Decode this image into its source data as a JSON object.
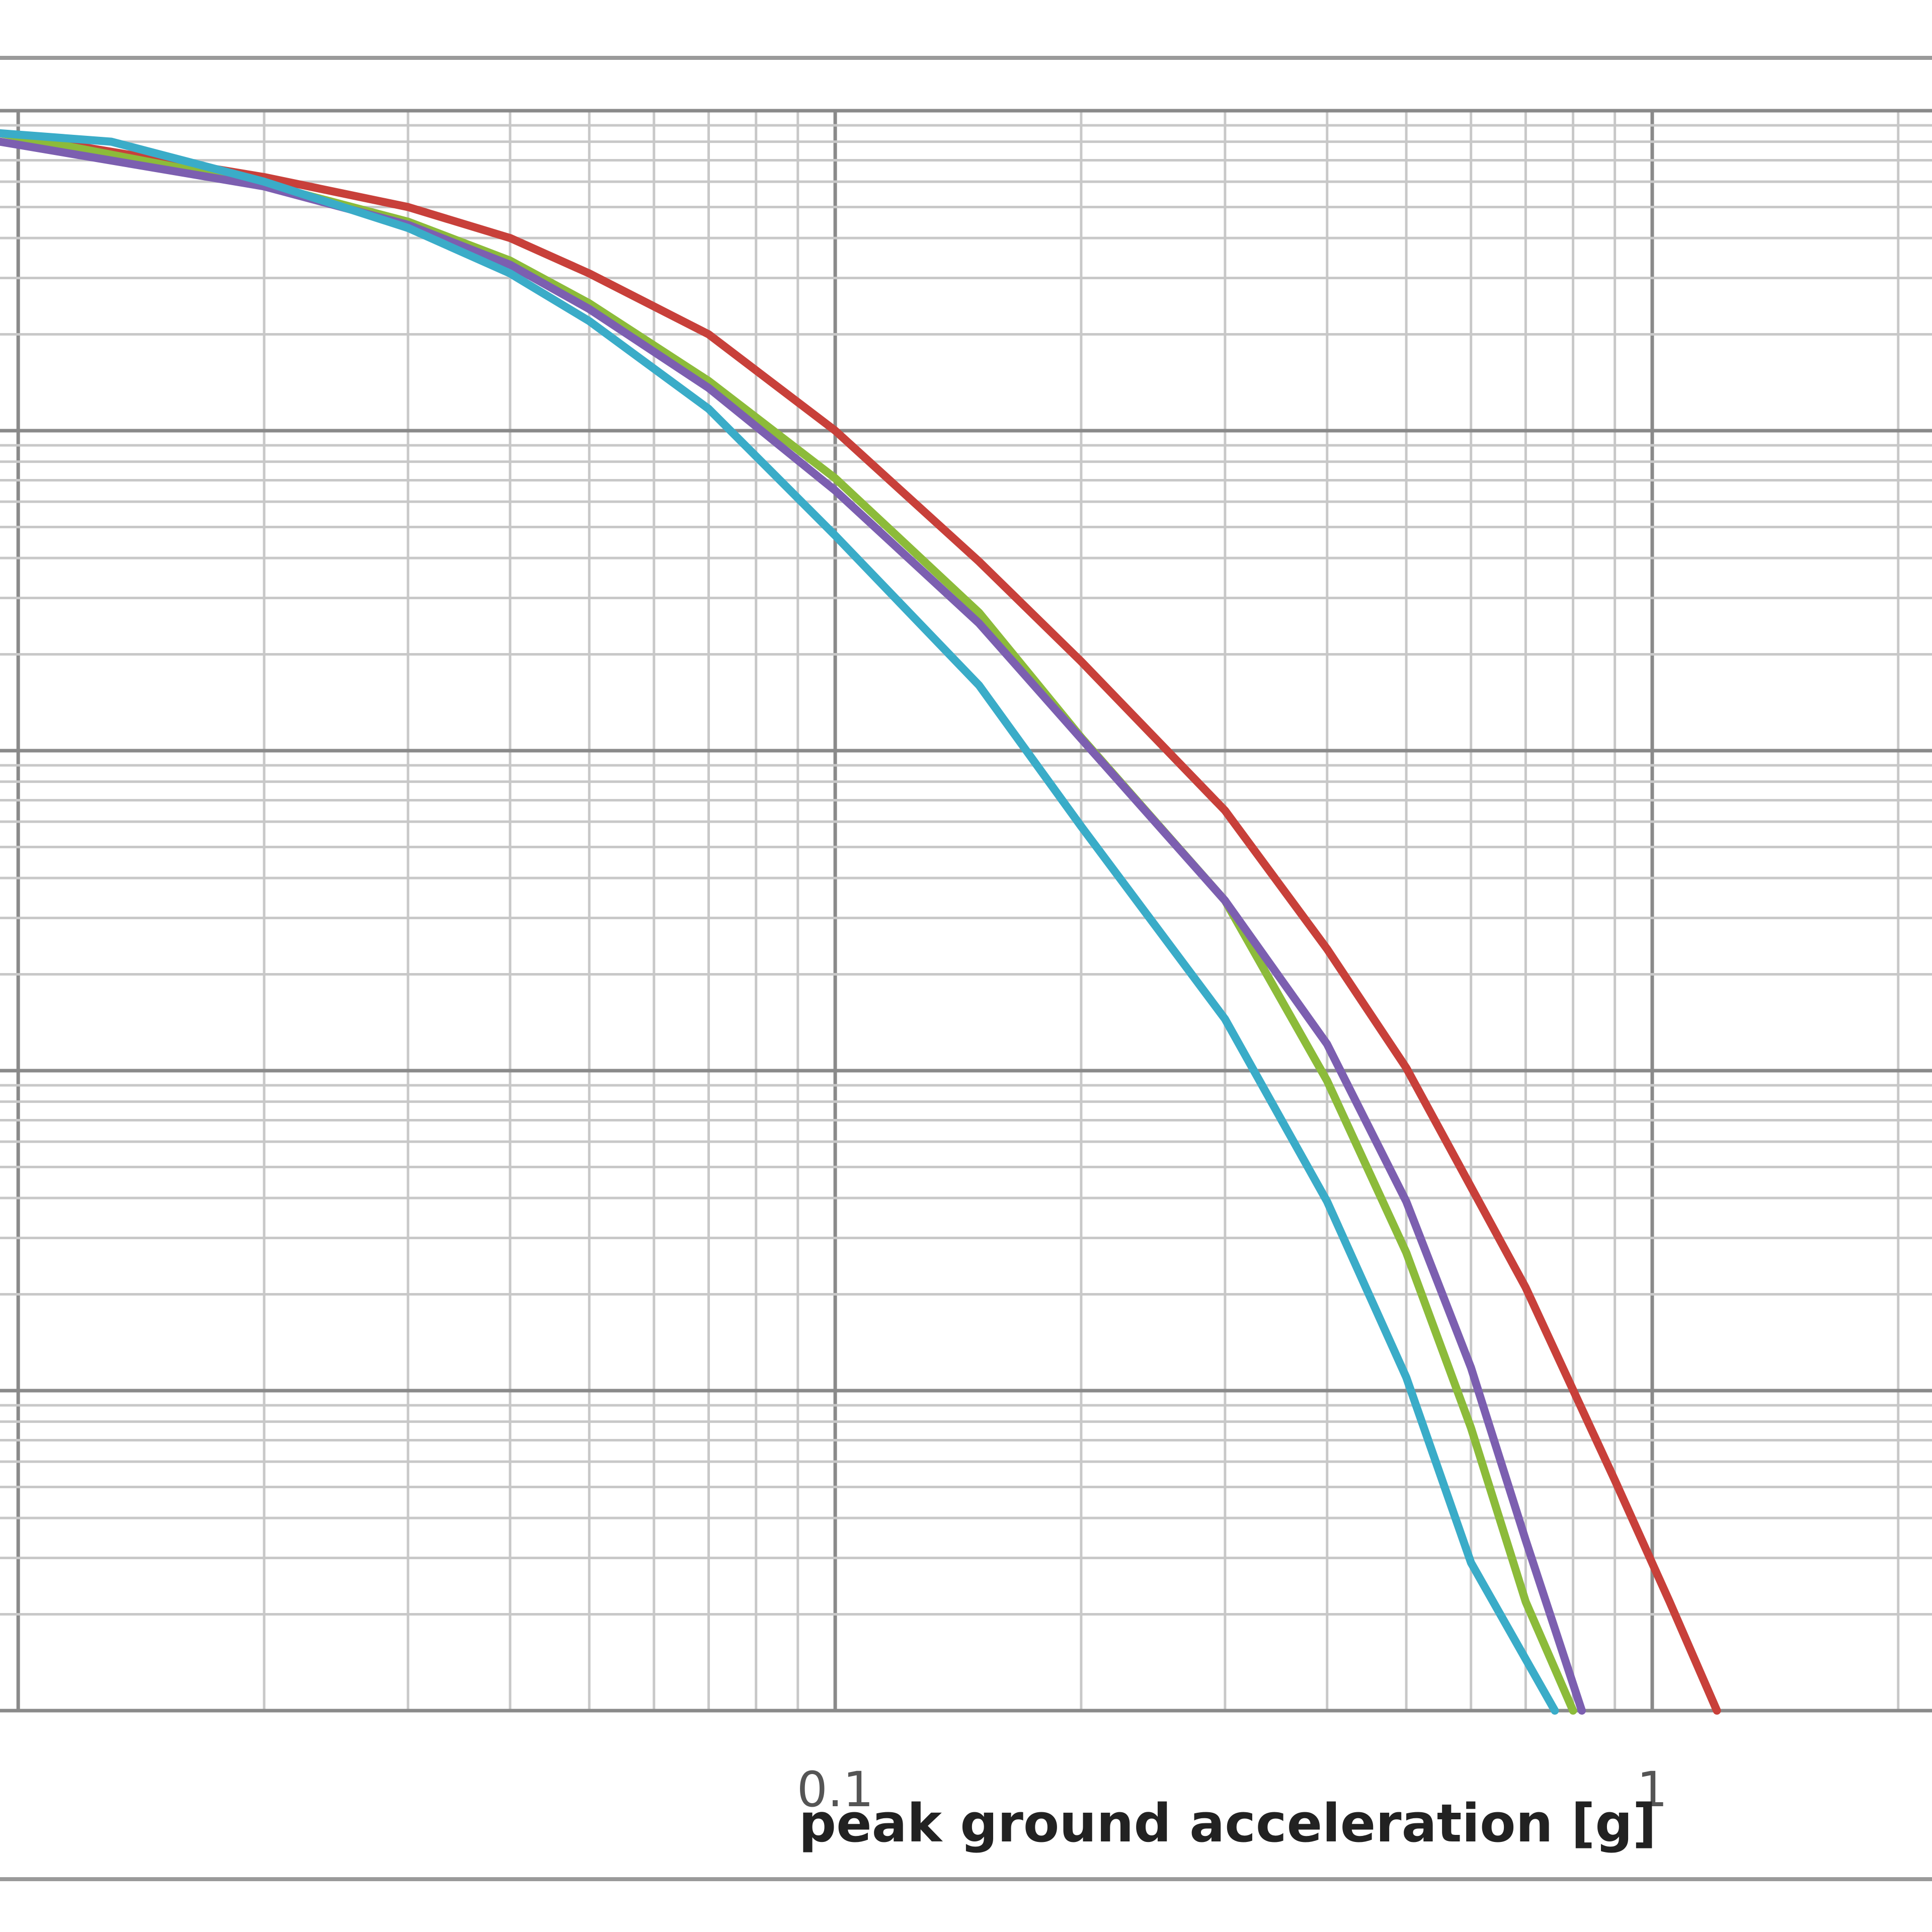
{
  "chart_data": {
    "type": "line",
    "title": "",
    "xlabel": "peak ground acceleration [g]",
    "ylabel": "",
    "x_scale": "log",
    "y_scale": "log",
    "xlim": [
      0.0095,
      2.2
    ],
    "ylim": [
      1e-05,
      1
    ],
    "x_tick_labels": [
      {
        "value": 0.1,
        "label": "0.1"
      },
      {
        "value": 1,
        "label": "1"
      }
    ],
    "grid": true,
    "legend": "none",
    "colors": {
      "grid_major": "#8a8a8a",
      "grid_minor": "#c8c8c8",
      "frame": "#9a9a9a"
    },
    "series": [
      {
        "color": "#c8403a",
        "points": [
          [
            0.0095,
            0.85
          ],
          [
            0.02,
            0.62
          ],
          [
            0.03,
            0.5
          ],
          [
            0.04,
            0.4
          ],
          [
            0.05,
            0.31
          ],
          [
            0.07,
            0.2
          ],
          [
            0.1,
            0.1
          ],
          [
            0.15,
            0.039
          ],
          [
            0.2,
            0.019
          ],
          [
            0.3,
            0.0065
          ],
          [
            0.4,
            0.0024
          ],
          [
            0.5,
            0.00102
          ],
          [
            0.7,
            0.00021
          ],
          [
            0.9,
            5.25e-05
          ],
          [
            1.05,
            2.19e-05
          ],
          [
            1.2,
            1e-05
          ]
        ]
      },
      {
        "color": "#8cbb3a",
        "points": [
          [
            0.0095,
            0.85
          ],
          [
            0.02,
            0.59
          ],
          [
            0.03,
            0.45
          ],
          [
            0.04,
            0.34
          ],
          [
            0.05,
            0.25
          ],
          [
            0.07,
            0.143
          ],
          [
            0.1,
            0.071
          ],
          [
            0.15,
            0.027
          ],
          [
            0.2,
            0.011
          ],
          [
            0.3,
            0.0034
          ],
          [
            0.4,
            0.00093
          ],
          [
            0.5,
            0.00027
          ],
          [
            0.6,
            7.65e-05
          ],
          [
            0.7,
            2.19e-05
          ],
          [
            0.8,
            1e-05
          ]
        ]
      },
      {
        "color": "#7c5fb0",
        "points": [
          [
            0.0095,
            0.8
          ],
          [
            0.02,
            0.58
          ],
          [
            0.03,
            0.44
          ],
          [
            0.04,
            0.33
          ],
          [
            0.05,
            0.24
          ],
          [
            0.07,
            0.136
          ],
          [
            0.1,
            0.065
          ],
          [
            0.15,
            0.025
          ],
          [
            0.2,
            0.0109
          ],
          [
            0.3,
            0.0034
          ],
          [
            0.4,
            0.00121
          ],
          [
            0.5,
            0.00039
          ],
          [
            0.6,
            0.000118
          ],
          [
            0.7,
            3.41e-05
          ],
          [
            0.82,
            1e-05
          ]
        ]
      },
      {
        "color": "#3aacc8",
        "points": [
          [
            0.0095,
            0.85
          ],
          [
            0.013,
            0.8
          ],
          [
            0.02,
            0.6
          ],
          [
            0.03,
            0.43
          ],
          [
            0.04,
            0.31
          ],
          [
            0.05,
            0.22
          ],
          [
            0.07,
            0.117
          ],
          [
            0.1,
            0.047
          ],
          [
            0.15,
            0.016
          ],
          [
            0.2,
            0.0058
          ],
          [
            0.3,
            0.00145
          ],
          [
            0.4,
            0.00039
          ],
          [
            0.5,
            0.00011
          ],
          [
            0.6,
            2.9e-05
          ],
          [
            0.76,
            1e-05
          ]
        ]
      }
    ]
  }
}
